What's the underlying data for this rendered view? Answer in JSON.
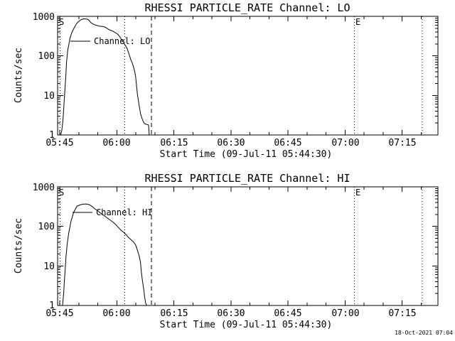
{
  "page": {
    "background": "#ffffff",
    "foreground": "#000000",
    "render_timestamp": "18-Oct-2021 07:04"
  },
  "chart_data": [
    {
      "type": "line",
      "title": "RHESSI PARTICLE_RATE Channel: LO",
      "ylabel": "Counts/sec",
      "xlabel": "Start Time (09-Jul-11 05:44:30)",
      "legend_label": "Channel: LO",
      "start_marker_label": "S",
      "end_marker_label": "E",
      "yscale": "log",
      "ylim": [
        1,
        1000
      ],
      "y_tick_labels": [
        "1000",
        "100",
        "10",
        "1"
      ],
      "y_tick_values": [
        1000,
        100,
        10,
        1
      ],
      "x_tick_labels": [
        "05:45",
        "06:00",
        "06:15",
        "06:30",
        "06:45",
        "07:00",
        "07:15"
      ],
      "x_tick_minutes": [
        0,
        15,
        30,
        45,
        60,
        75,
        90
      ],
      "x_minor_step_min": 5,
      "xlim_minutes": [
        -0.6,
        99.4
      ],
      "vlines_dotted_min": [
        0.1,
        17.1,
        77.4,
        95.3
      ],
      "vlines_dashed_min": [
        24.1
      ],
      "legend_position": "inside-upper-left",
      "grid": false,
      "series": {
        "name": "Channel: LO",
        "points_min_counts": [
          [
            0.2,
            1.0
          ],
          [
            0.5,
            1.3
          ],
          [
            0.8,
            2.3
          ],
          [
            1.0,
            4.6
          ],
          [
            1.2,
            8.9
          ],
          [
            1.4,
            18
          ],
          [
            1.6,
            36
          ],
          [
            1.75,
            70
          ],
          [
            2.1,
            143
          ],
          [
            2.7,
            290
          ],
          [
            3.1,
            380
          ],
          [
            3.4,
            440
          ],
          [
            4.4,
            660
          ],
          [
            5.0,
            750
          ],
          [
            5.5,
            815
          ],
          [
            6.3,
            865
          ],
          [
            7.2,
            850
          ],
          [
            7.7,
            790
          ],
          [
            8.1,
            700
          ],
          [
            8.7,
            640
          ],
          [
            9.2,
            612
          ],
          [
            10.0,
            580
          ],
          [
            10.5,
            562
          ],
          [
            11.3,
            552
          ],
          [
            11.8,
            540
          ],
          [
            12.4,
            500
          ],
          [
            13.0,
            456
          ],
          [
            13.7,
            430
          ],
          [
            14.3,
            402
          ],
          [
            15.2,
            356
          ],
          [
            15.7,
            310
          ],
          [
            16.1,
            268
          ],
          [
            16.6,
            230
          ],
          [
            17.1,
            191
          ],
          [
            17.6,
            160
          ],
          [
            18.0,
            126
          ],
          [
            18.6,
            83
          ],
          [
            19.0,
            67
          ],
          [
            19.3,
            55
          ],
          [
            19.6,
            43
          ],
          [
            19.9,
            31
          ],
          [
            20.1,
            20
          ],
          [
            20.4,
            10.6
          ],
          [
            20.8,
            5.9
          ],
          [
            21.2,
            3.5
          ],
          [
            21.6,
            2.6
          ],
          [
            22.0,
            2.1
          ],
          [
            22.4,
            1.9
          ],
          [
            23.3,
            1.8
          ],
          [
            23.5,
            1.0
          ]
        ]
      }
    },
    {
      "type": "line",
      "title": "RHESSI PARTICLE_RATE Channel: HI",
      "ylabel": "Counts/sec",
      "xlabel": "Start Time (09-Jul-11 05:44:30)",
      "legend_label": "Channel: HI",
      "start_marker_label": "S",
      "end_marker_label": "E",
      "yscale": "log",
      "ylim": [
        1,
        1000
      ],
      "y_tick_labels": [
        "1000",
        "100",
        "10",
        "1"
      ],
      "y_tick_values": [
        1000,
        100,
        10,
        1
      ],
      "x_tick_labels": [
        "05:45",
        "06:00",
        "06:15",
        "06:30",
        "06:45",
        "07:00",
        "07:15"
      ],
      "x_tick_minutes": [
        0,
        15,
        30,
        45,
        60,
        75,
        90
      ],
      "x_minor_step_min": 5,
      "xlim_minutes": [
        -0.6,
        99.4
      ],
      "vlines_dotted_min": [
        0.1,
        17.1,
        77.4,
        95.3
      ],
      "vlines_dashed_min": [
        24.1
      ],
      "legend_position": "inside-upper-left",
      "grid": false,
      "series": {
        "name": "Channel: HI",
        "points_min_counts": [
          [
            0.7,
            1.0
          ],
          [
            1.0,
            2.1
          ],
          [
            1.2,
            4.3
          ],
          [
            1.4,
            8.2
          ],
          [
            1.6,
            16.7
          ],
          [
            1.9,
            34
          ],
          [
            2.3,
            65
          ],
          [
            2.9,
            132
          ],
          [
            3.6,
            225
          ],
          [
            4.5,
            326
          ],
          [
            5.5,
            354
          ],
          [
            6.2,
            365
          ],
          [
            6.8,
            369
          ],
          [
            7.5,
            360
          ],
          [
            8.1,
            339
          ],
          [
            8.7,
            305
          ],
          [
            9.2,
            277
          ],
          [
            10.0,
            248
          ],
          [
            10.5,
            225
          ],
          [
            11.2,
            200
          ],
          [
            11.8,
            183
          ],
          [
            12.4,
            165
          ],
          [
            13.0,
            149
          ],
          [
            13.7,
            134
          ],
          [
            14.3,
            121
          ],
          [
            14.8,
            108
          ],
          [
            15.2,
            98
          ],
          [
            16.1,
            80
          ],
          [
            16.7,
            71
          ],
          [
            17.4,
            62
          ],
          [
            18.0,
            53
          ],
          [
            18.6,
            47
          ],
          [
            19.3,
            41
          ],
          [
            19.9,
            34
          ],
          [
            20.4,
            25
          ],
          [
            20.8,
            18.8
          ],
          [
            21.2,
            12.4
          ],
          [
            21.4,
            7.3
          ],
          [
            21.7,
            4.3
          ],
          [
            22.1,
            2.4
          ],
          [
            22.3,
            1.6
          ],
          [
            22.6,
            1.1
          ],
          [
            22.9,
            1.0
          ]
        ]
      }
    }
  ]
}
